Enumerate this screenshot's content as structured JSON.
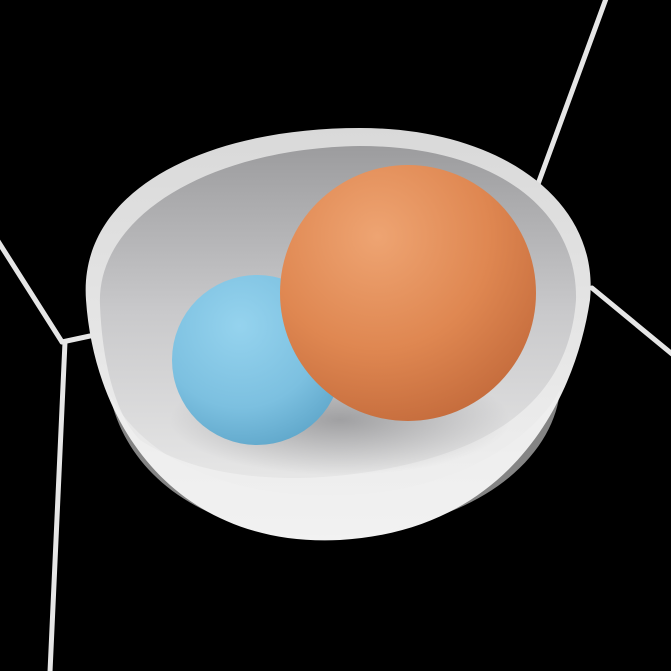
{
  "scene": {
    "background": "#000000",
    "objects": [
      {
        "kind": "wireframe-edges",
        "color": "#e6e6e6"
      },
      {
        "kind": "translucent-bowl",
        "color": "#e8e8e8"
      },
      {
        "kind": "sphere",
        "name": "blue-sphere",
        "color": "#7fc3e2"
      },
      {
        "kind": "sphere",
        "name": "orange-sphere",
        "color": "#e08a55"
      }
    ]
  }
}
